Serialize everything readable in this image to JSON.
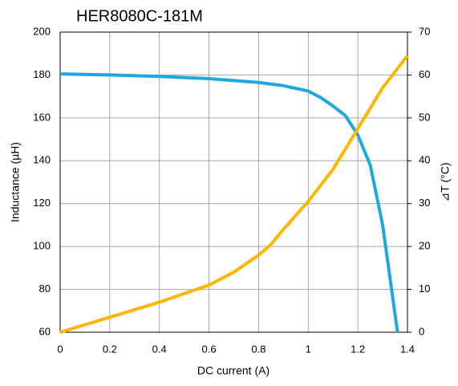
{
  "chart_data": {
    "type": "line",
    "title": "HER8080C-181M",
    "x_label": "DC current (A)",
    "y_label": "Inductance (µH)",
    "y2_label": "⊿T (°C)",
    "xlim": [
      0,
      1.4
    ],
    "xticks": [
      0,
      0.2,
      0.4,
      0.6,
      0.8,
      1,
      1.2,
      1.4
    ],
    "ylim": [
      60,
      200
    ],
    "yticks": [
      60,
      80,
      100,
      120,
      140,
      160,
      180,
      200
    ],
    "y2lim": [
      0,
      70
    ],
    "y2ticks": [
      0,
      10,
      20,
      30,
      40,
      50,
      60,
      70
    ],
    "grid": true,
    "series": [
      {
        "color": "#1ea8e0",
        "x": [
          0,
          0.2,
          0.4,
          0.6,
          0.8,
          0.9,
          1.0,
          1.05,
          1.1,
          1.15,
          1.2,
          1.25,
          1.3,
          1.33,
          1.36
        ],
        "values": [
          180.5,
          180,
          179.3,
          178.3,
          176.5,
          175,
          172.5,
          169.5,
          165.5,
          161,
          152,
          138,
          110,
          85,
          60
        ]
      },
      {
        "color": "#ffb600",
        "axis": "y2",
        "x": [
          0,
          0.2,
          0.4,
          0.6,
          0.7,
          0.8,
          0.85,
          0.9,
          1.0,
          1.1,
          1.2,
          1.3,
          1.4
        ],
        "values": [
          0,
          3.5,
          7,
          11,
          14,
          18,
          20.5,
          24,
          30.5,
          38,
          47.5,
          57,
          64.5
        ]
      }
    ]
  }
}
